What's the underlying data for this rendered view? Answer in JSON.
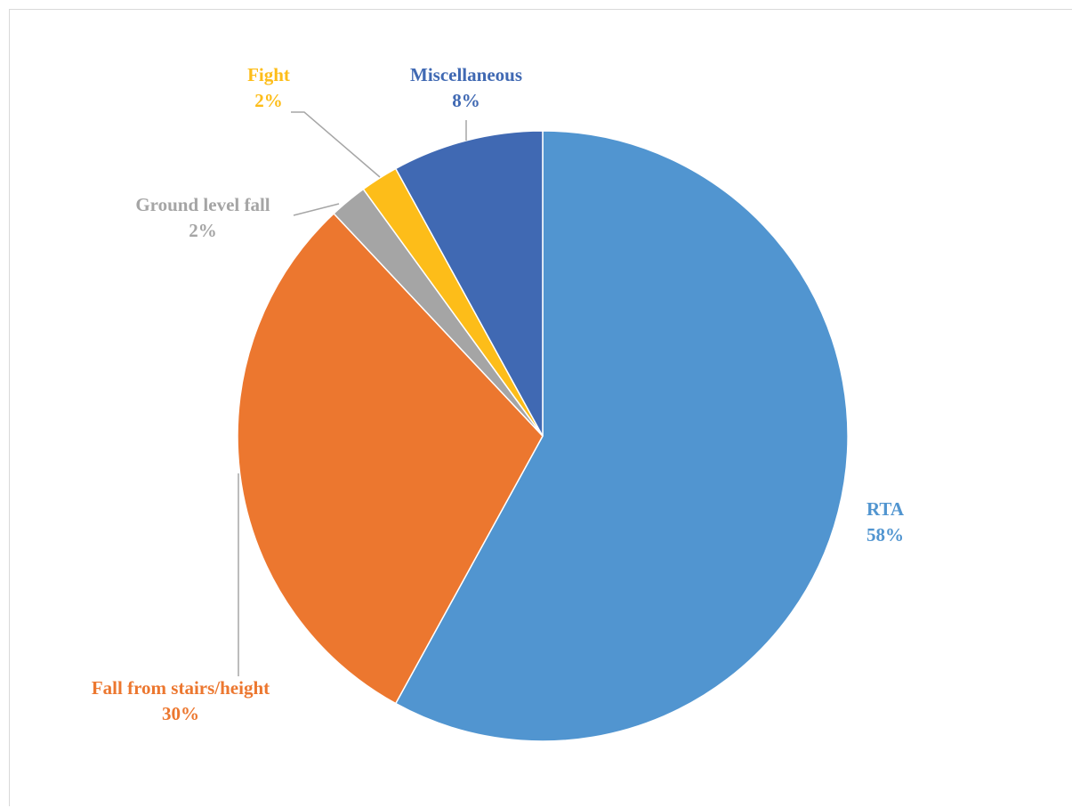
{
  "chart_data": {
    "type": "pie",
    "title": "",
    "slices": [
      {
        "label": "RTA",
        "value": 58,
        "value_label": "58%",
        "color": "#5195d0"
      },
      {
        "label": "Fall from stairs/height",
        "value": 30,
        "value_label": "30%",
        "color": "#ec772f"
      },
      {
        "label": "Ground level fall",
        "value": 2,
        "value_label": "2%",
        "color": "#a5a5a5"
      },
      {
        "label": "Fight",
        "value": 2,
        "value_label": "2%",
        "color": "#fdbd19"
      },
      {
        "label": "Miscellaneous",
        "value": 8,
        "value_label": "8%",
        "color": "#4069b3"
      }
    ],
    "start_angle": "12 o'clock",
    "direction": "clockwise",
    "legend": "none",
    "data_labels": "category name and percentage, outside the pie"
  }
}
